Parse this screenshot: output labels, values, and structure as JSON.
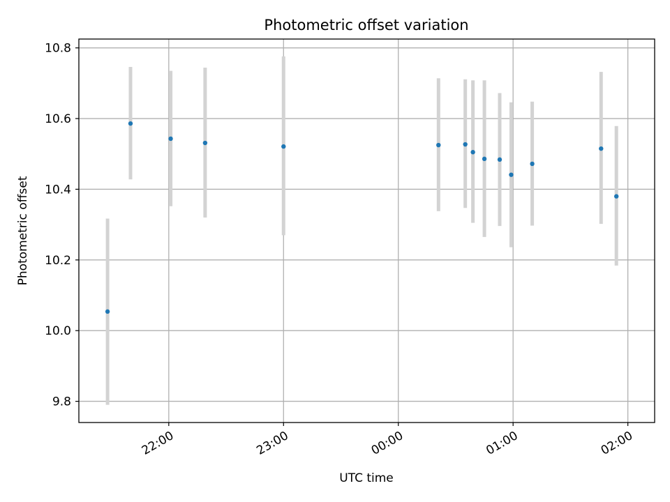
{
  "chart_data": {
    "type": "scatter",
    "title": "Photometric offset variation",
    "xlabel": "UTC time",
    "ylabel": "Photometric offset",
    "ylim": [
      9.74,
      10.825
    ],
    "xlim": [
      "21:13",
      "02:14"
    ],
    "yticks": [
      9.8,
      10.0,
      10.2,
      10.4,
      10.6,
      10.8
    ],
    "yticks_labels": [
      "9.8",
      "10.0",
      "10.2",
      "10.4",
      "10.6",
      "10.8"
    ],
    "xticks": [
      "22:00",
      "23:00",
      "00:00",
      "01:00",
      "02:00"
    ],
    "grid": true,
    "colors": {
      "points": "#1f77b4",
      "errorbars": "#d3d3d3",
      "grid": "#b0b0b0"
    },
    "points": [
      {
        "x": "21:28",
        "y": 10.054,
        "ylow": 9.79,
        "yhigh": 10.317
      },
      {
        "x": "21:40",
        "y": 10.586,
        "ylow": 10.428,
        "yhigh": 10.746
      },
      {
        "x": "22:01",
        "y": 10.543,
        "ylow": 10.352,
        "yhigh": 10.735
      },
      {
        "x": "22:19",
        "y": 10.531,
        "ylow": 10.32,
        "yhigh": 10.744
      },
      {
        "x": "23:00",
        "y": 10.521,
        "ylow": 10.27,
        "yhigh": 10.776
      },
      {
        "x": "00:21",
        "y": 10.525,
        "ylow": 10.338,
        "yhigh": 10.714
      },
      {
        "x": "00:35",
        "y": 10.527,
        "ylow": 10.347,
        "yhigh": 10.711
      },
      {
        "x": "00:39",
        "y": 10.505,
        "ylow": 10.305,
        "yhigh": 10.708
      },
      {
        "x": "00:45",
        "y": 10.486,
        "ylow": 10.265,
        "yhigh": 10.708
      },
      {
        "x": "00:53",
        "y": 10.484,
        "ylow": 10.296,
        "yhigh": 10.672
      },
      {
        "x": "00:59",
        "y": 10.441,
        "ylow": 10.236,
        "yhigh": 10.646
      },
      {
        "x": "01:10",
        "y": 10.472,
        "ylow": 10.297,
        "yhigh": 10.648
      },
      {
        "x": "01:46",
        "y": 10.515,
        "ylow": 10.302,
        "yhigh": 10.732
      },
      {
        "x": "01:54",
        "y": 10.38,
        "ylow": 10.184,
        "yhigh": 10.579
      }
    ]
  }
}
